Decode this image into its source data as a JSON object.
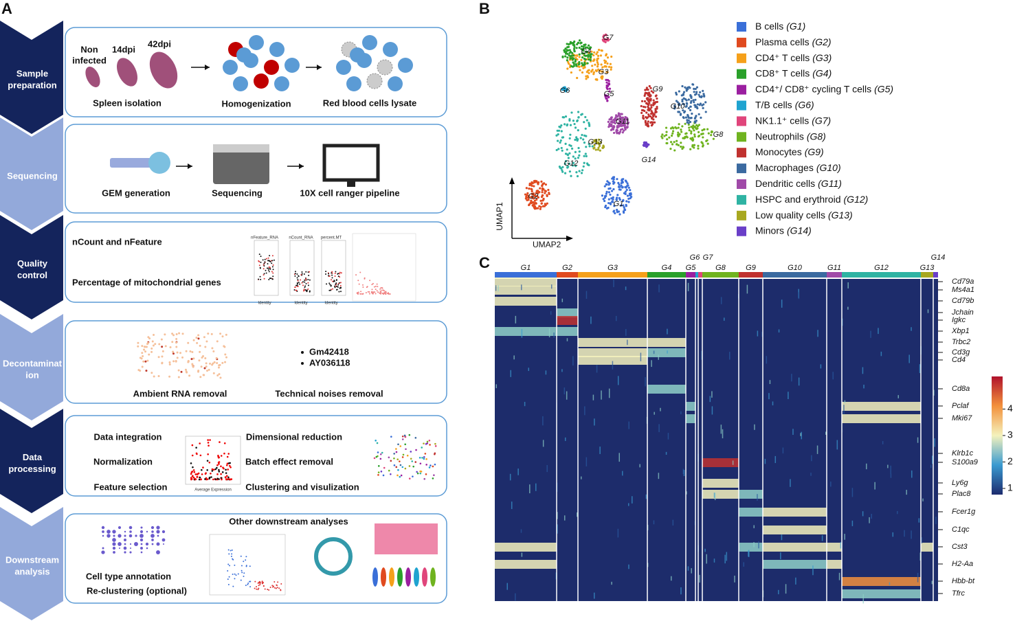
{
  "panel_a": {
    "label": "A",
    "steps": [
      {
        "lines": [
          "Sample",
          "preparation"
        ],
        "texts": [
          "Non",
          "infected",
          "14dpi",
          "42dpi",
          "Spleen  isolation",
          "Homogenization",
          "Red blood cells lysate"
        ]
      },
      {
        "lines": [
          "Sequencing"
        ],
        "texts": [
          "GEM generation",
          "Sequencing",
          "10X cell ranger pipeline"
        ]
      },
      {
        "lines": [
          "Quality",
          "control"
        ],
        "texts": [
          "nCount and nFeature",
          "Percentage of mitochondrial  genes",
          "nFeature_RNA",
          "nCount_RNA",
          "percent.MT",
          "Identity",
          "Identity",
          "Identity"
        ]
      },
      {
        "lines": [
          "Decontaminat",
          "ion"
        ],
        "texts": [
          "Gm42418",
          "AY036118",
          "Ambient RNA removal",
          "Technical  noises removal"
        ]
      },
      {
        "lines": [
          "Data",
          "processing"
        ],
        "texts": [
          "Data integration",
          "Normalization",
          "Feature selection",
          "Dimensional  reduction",
          "Batch effect removal",
          "Clustering and visulization",
          "Average Expression"
        ]
      },
      {
        "lines": [
          "Downstream",
          "analysis"
        ],
        "texts": [
          "Other downstream analyses",
          "Cell type annotation",
          "Re-clustering (optional)"
        ]
      }
    ]
  },
  "panel_b": {
    "label": "B",
    "x_axis": "UMAP2",
    "y_axis": "UMAP1",
    "legend": [
      {
        "name": "B cells",
        "group": "(G1)",
        "color": "#3a6fd8"
      },
      {
        "name": "Plasma cells",
        "group": "(G2)",
        "color": "#e04a1f"
      },
      {
        "name": "CD4⁺ T cells",
        "group": "(G3)",
        "color": "#f5a01a"
      },
      {
        "name": "CD8⁺ T cells",
        "group": "(G4)",
        "color": "#2aa02a"
      },
      {
        "name": "CD4⁺/ CD8⁺ cycling T cells",
        "group": "(G5)",
        "color": "#9b1fa0"
      },
      {
        "name": "T/B cells",
        "group": "(G6)",
        "color": "#1fa3d0"
      },
      {
        "name": "NK1.1⁺ cells",
        "group": "(G7)",
        "color": "#e0457b"
      },
      {
        "name": "Neutrophils",
        "group": "(G8)",
        "color": "#6fb31f"
      },
      {
        "name": "Monocytes",
        "group": "(G9)",
        "color": "#c0312f"
      },
      {
        "name": "Macrophages",
        "group": "(G10)",
        "color": "#3b6aa0"
      },
      {
        "name": "Dendritic cells",
        "group": "(G11)",
        "color": "#a04aa8"
      },
      {
        "name": "HSPC and erythroid",
        "group": "(G12)",
        "color": "#2fb3a3"
      },
      {
        "name": "Low quality cells",
        "group": "(G13)",
        "color": "#a8a820"
      },
      {
        "name": "Minors",
        "group": "(G14)",
        "color": "#6a3fc8"
      }
    ],
    "cluster_labels": [
      "G1",
      "G2",
      "G3",
      "G4",
      "G5",
      "G6",
      "G7",
      "G8",
      "G9",
      "G10",
      "G11",
      "G12",
      "G13",
      "G14"
    ]
  },
  "panel_c": {
    "label": "C",
    "groups": [
      "G1",
      "G2",
      "G3",
      "G4",
      "G5",
      "G6",
      "G7",
      "G8",
      "G9",
      "G10",
      "G11",
      "G12",
      "G13",
      "G14"
    ],
    "genes": [
      "Cd79a",
      "Ms4a1",
      "Cd79b",
      "Jchain",
      "Igkc",
      "Xbp1",
      "Trbc2",
      "Cd3g",
      "Cd4",
      "Cd8a",
      "Pclaf",
      "Mki67",
      "Klrb1c",
      "S100a9",
      "Ly6g",
      "Plac8",
      "Fcer1g",
      "C1qc",
      "Cst3",
      "H2-Aa",
      "Hbb-bt",
      "Tfrc"
    ],
    "colorbar_ticks": [
      1,
      2,
      3,
      4
    ]
  }
}
